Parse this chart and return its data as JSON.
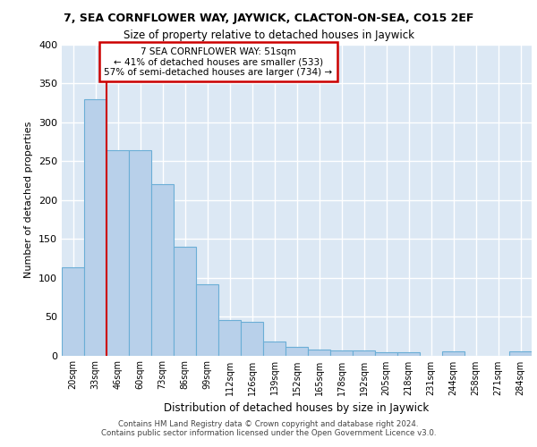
{
  "title": "7, SEA CORNFLOWER WAY, JAYWICK, CLACTON-ON-SEA, CO15 2EF",
  "subtitle": "Size of property relative to detached houses in Jaywick",
  "xlabel": "Distribution of detached houses by size in Jaywick",
  "ylabel": "Number of detached properties",
  "bar_labels": [
    "20sqm",
    "33sqm",
    "46sqm",
    "60sqm",
    "73sqm",
    "86sqm",
    "99sqm",
    "112sqm",
    "126sqm",
    "139sqm",
    "152sqm",
    "165sqm",
    "178sqm",
    "192sqm",
    "205sqm",
    "218sqm",
    "231sqm",
    "244sqm",
    "258sqm",
    "271sqm",
    "284sqm"
  ],
  "all_bar_values": [
    113,
    330,
    264,
    264,
    220,
    140,
    92,
    45,
    43,
    18,
    11,
    7,
    6,
    6,
    4,
    4,
    0,
    5,
    0,
    0,
    5
  ],
  "bar_color": "#b8d0ea",
  "bar_edge_color": "#6baed6",
  "red_line_x": 1.5,
  "annotation_line1": "7 SEA CORNFLOWER WAY: 51sqm",
  "annotation_line2": "← 41% of detached houses are smaller (533)",
  "annotation_line3": "57% of semi-detached houses are larger (734) →",
  "ylim": [
    0,
    400
  ],
  "yticks": [
    0,
    50,
    100,
    150,
    200,
    250,
    300,
    350,
    400
  ],
  "background_color": "#dce8f4",
  "grid_color": "#ffffff",
  "footer_line1": "Contains HM Land Registry data © Crown copyright and database right 2024.",
  "footer_line2": "Contains public sector information licensed under the Open Government Licence v3.0."
}
